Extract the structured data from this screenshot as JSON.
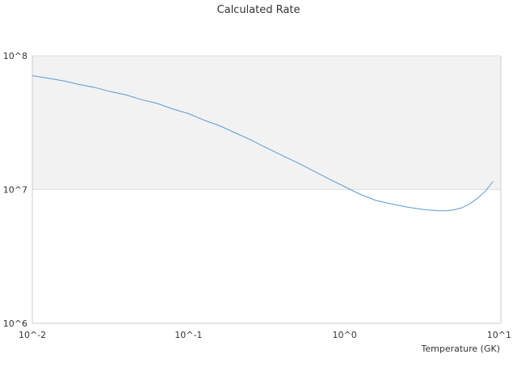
{
  "chart_data": {
    "type": "line",
    "title": "Calculated Rate",
    "xlabel": "Temperature (GK)",
    "ylabel": "",
    "x_scale": "log",
    "y_scale": "log",
    "xlim": [
      0.01,
      10
    ],
    "ylim": [
      1000000,
      100000000
    ],
    "x_ticks": [
      0.01,
      0.1,
      1,
      10
    ],
    "x_tick_labels": [
      "10^-2",
      "10^-1",
      "10^0",
      "10^1"
    ],
    "y_ticks": [
      1000000,
      10000000,
      100000000
    ],
    "y_tick_labels": [
      "10^6",
      "10^7",
      "10^8"
    ],
    "shaded_band": [
      10000000,
      100000000
    ],
    "colors": {
      "line": "#5b9bd5",
      "band": "#f2f2f2",
      "gridline": "#e0e0e0",
      "axis": "#cccccc"
    },
    "series": [
      {
        "x": [
          0.01,
          0.0126,
          0.0158,
          0.02,
          0.0251,
          0.0316,
          0.0398,
          0.0501,
          0.0631,
          0.0794,
          0.1,
          0.126,
          0.158,
          0.2,
          0.251,
          0.316,
          0.398,
          0.501,
          0.631,
          0.794,
          1.0,
          1.26,
          1.58,
          2.0,
          2.51,
          3.16,
          3.98,
          4.47,
          5.01,
          5.62,
          6.31,
          7.08,
          7.94,
          8.91
        ],
        "y": [
          71000000,
          68000000,
          65000000,
          61000000,
          58000000,
          54000000,
          51000000,
          47000000,
          44000000,
          40000000,
          37000000,
          33000000,
          30000000,
          26500000,
          23500000,
          20500000,
          18000000,
          15800000,
          13800000,
          12000000,
          10500000,
          9200000,
          8300000,
          7800000,
          7400000,
          7100000,
          6950000,
          6950000,
          7050000,
          7300000,
          7800000,
          8600000,
          9700000,
          11500000
        ]
      }
    ]
  }
}
